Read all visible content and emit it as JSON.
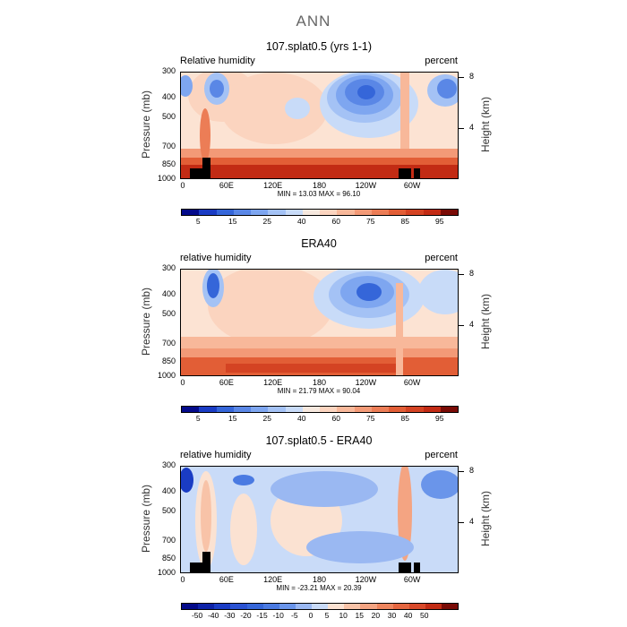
{
  "page_title": "ANN",
  "panels": [
    {
      "title": "107.splat0.5 (yrs 1-1)",
      "var_label": "Relative humidity",
      "unit_label": "percent",
      "minmax": "MIN =   13.03   MAX =   96.10",
      "colorbar_labels": [
        "5",
        "15",
        "25",
        "40",
        "60",
        "75",
        "85",
        "95"
      ],
      "colorbar_colors": [
        "#040a8a",
        "#1a3cc4",
        "#3566d9",
        "#5a87e6",
        "#7ea6f0",
        "#a4c2f5",
        "#c8dbf8",
        "#f6e8de",
        "#fbd4bf",
        "#f8b89a",
        "#f39a77",
        "#ec7d56",
        "#e25e36",
        "#d44323",
        "#c22b14",
        "#7a0b06"
      ]
    },
    {
      "title": "ERA40",
      "var_label": "relative humidity",
      "unit_label": "percent",
      "minmax": "MIN =   21.79   MAX =   90.04",
      "colorbar_labels": [
        "5",
        "15",
        "25",
        "40",
        "60",
        "75",
        "85",
        "95"
      ],
      "colorbar_colors": [
        "#040a8a",
        "#1a3cc4",
        "#3566d9",
        "#5a87e6",
        "#7ea6f0",
        "#a4c2f5",
        "#c8dbf8",
        "#f6e8de",
        "#fbd4bf",
        "#f8b89a",
        "#f39a77",
        "#ec7d56",
        "#e25e36",
        "#d44323",
        "#c22b14",
        "#7a0b06"
      ]
    },
    {
      "title": "107.splat0.5 - ERA40",
      "var_label": "relative humidity",
      "unit_label": "percent",
      "minmax": "MIN =  -23.21   MAX =   20.39",
      "colorbar_labels": [
        "-50",
        "-40",
        "-30",
        "-20",
        "-15",
        "-10",
        "-5",
        "0",
        "5",
        "10",
        "15",
        "20",
        "30",
        "40",
        "50"
      ],
      "colorbar_colors": [
        "#040a8a",
        "#0d22a8",
        "#1a3cc4",
        "#2a52d2",
        "#3566d9",
        "#4a7ae2",
        "#6a95ea",
        "#9ab8f2",
        "#c9dbf8",
        "#fbe2d2",
        "#f8c3a8",
        "#f4a482",
        "#ee855e",
        "#e56640",
        "#d8492a",
        "#c22b14",
        "#7a0b06"
      ]
    }
  ],
  "chart_data": {
    "type": "heatmap",
    "xlabel": "",
    "ylabel": "Pressure (mb)",
    "ylabel_right": "Height (km)",
    "x_ticks": [
      "0",
      "60E",
      "120E",
      "180",
      "120W",
      "60W"
    ],
    "x_tick_values": [
      0,
      60,
      120,
      180,
      240,
      300
    ],
    "xlim": [
      0,
      360
    ],
    "y_ticks": [
      "300",
      "400",
      "500",
      "700",
      "850",
      "1000"
    ],
    "y_tick_values": [
      300,
      400,
      500,
      700,
      850,
      1000
    ],
    "ylim": [
      1000,
      300
    ],
    "height_ticks": [
      "8",
      "4"
    ],
    "height_tick_values": [
      8,
      4
    ]
  }
}
